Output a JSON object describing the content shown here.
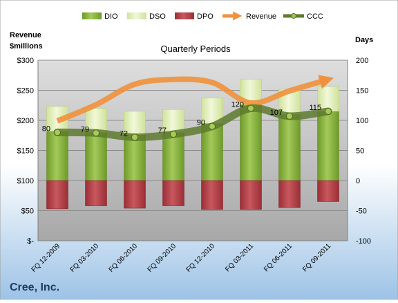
{
  "chart_data": {
    "type": "bar",
    "title": "Quarterly Periods",
    "company": "Cree, Inc.",
    "left_axis_title": [
      "Revenue",
      "$millions"
    ],
    "right_axis_title": "Days",
    "left_ylim": [
      0,
      300
    ],
    "right_ylim": [
      -100,
      200
    ],
    "left_ticks": [
      "$-",
      "$50",
      "$100",
      "$150",
      "$200",
      "$250",
      "$300"
    ],
    "right_ticks": [
      "-100",
      "-50",
      "0",
      "50",
      "100",
      "150",
      "200"
    ],
    "categories": [
      "FQ 12-2009",
      "FQ 03-2010",
      "FQ 06-2010",
      "FQ 09-2010",
      "FQ 12-2010",
      "FQ 03-2011",
      "FQ 06-2011",
      "FQ 09-2011"
    ],
    "legend": [
      "DIO",
      "DSO",
      "DPO",
      "Revenue",
      "CCC"
    ],
    "legend_position": "top",
    "grid": true,
    "series": [
      {
        "name": "DIO",
        "axis": "right",
        "values": [
          82,
          80,
          76,
          80,
          95,
          126,
          110,
          115
        ]
      },
      {
        "name": "DSO",
        "axis": "right",
        "values": [
          41,
          40,
          39,
          38,
          42,
          42,
          42,
          41
        ]
      },
      {
        "name": "DPO",
        "axis": "right",
        "values": [
          -47,
          -42,
          -46,
          -42,
          -48,
          -48,
          -45,
          -35
        ]
      },
      {
        "name": "Revenue",
        "axis": "left",
        "values": [
          199,
          226,
          260,
          268,
          263,
          229,
          249,
          268
        ]
      },
      {
        "name": "CCC",
        "axis": "right",
        "values": [
          80,
          79,
          72,
          77,
          90,
          120,
          107,
          115
        ]
      }
    ],
    "ccc_labels": [
      "80",
      "79",
      "72",
      "77",
      "90",
      "120",
      "107",
      "115"
    ],
    "colors": {
      "DIO": "#8CB33F",
      "DSO": "#DCEBB0",
      "DPO": "#B64047",
      "Revenue": "#F0913C",
      "CCC": "#5E7A2E",
      "background_top": "#FFFFFF",
      "background_bottom": "#9DC3E6",
      "plot_top": "#DADADA",
      "plot_bottom": "#A7A7A7"
    }
  }
}
